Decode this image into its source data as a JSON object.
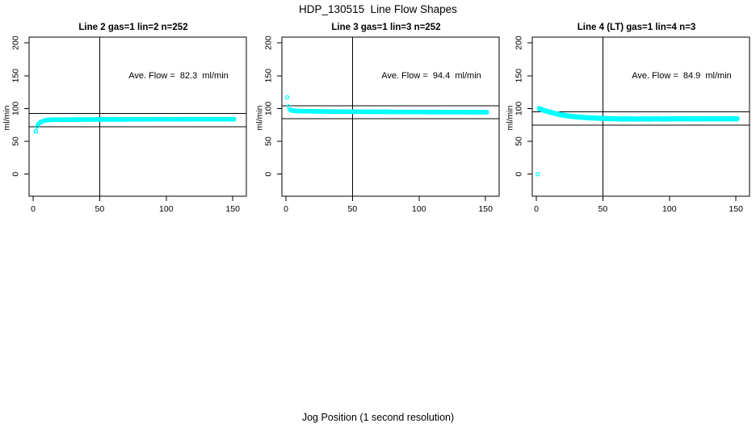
{
  "figure": {
    "title": "HDP_130515  Line Flow Shapes",
    "xlabel": "Jog Position (1 second resolution)",
    "background_color": "#FFFFFF",
    "axis_color": "#000000"
  },
  "chart_data": {
    "type": "scatter",
    "title": "HDP_130515  Line Flow Shapes",
    "xlabel": "Jog Position (1 second resolution)",
    "ylabel": "ml/min",
    "marker": "open-circle",
    "point_color": "#00FFFF",
    "grid": false,
    "legend": "none",
    "x_ticks": [
      0,
      50,
      100,
      150
    ],
    "y_ticks": [
      0,
      50,
      100,
      150,
      200
    ],
    "xlim": [
      -6,
      157
    ],
    "ylim": [
      -34,
      209
    ],
    "vline_x": 50,
    "panels": [
      {
        "title": "Line 2 gas=1 lin=2 n=252",
        "annotation": "Ave. Flow =  82.3  ml/min",
        "ave_flow_ml_min": 82.3,
        "n_points": 252,
        "hlines": [
          92.3,
          72.3
        ],
        "x_start": 2,
        "x_end": 151,
        "x_step": 1,
        "keypoints": [
          [
            2,
            65
          ],
          [
            3,
            72.5
          ],
          [
            4,
            76
          ],
          [
            5,
            78
          ],
          [
            6,
            79.5
          ],
          [
            8,
            81
          ],
          [
            10,
            82
          ],
          [
            15,
            82.8
          ],
          [
            60,
            83.2
          ],
          [
            151,
            83.5
          ]
        ],
        "outliers": [],
        "overlay_offsets": [
          0,
          0.5
        ]
      },
      {
        "title": "Line 3 gas=1 lin=3 n=252",
        "annotation": "Ave. Flow =  94.4  ml/min",
        "ave_flow_ml_min": 94.4,
        "n_points": 252,
        "hlines": [
          104.4,
          84.4
        ],
        "x_start": 3,
        "x_end": 151,
        "x_step": 1,
        "keypoints": [
          [
            3,
            98
          ],
          [
            4,
            97
          ],
          [
            6,
            96.3
          ],
          [
            10,
            95.8
          ],
          [
            30,
            95.2
          ],
          [
            60,
            94.8
          ],
          [
            100,
            94.4
          ],
          [
            151,
            94.1
          ]
        ],
        "outliers": [
          [
            1,
            117
          ],
          [
            2,
            103
          ]
        ],
        "overlay_offsets": [
          0,
          0.5
        ]
      },
      {
        "title": "Line 4 (LT) gas=1 lin=4 n=3",
        "annotation": "Ave. Flow =  84.9  ml/min",
        "ave_flow_ml_min": 84.9,
        "n_points": 3,
        "hlines": [
          94.9,
          74.9
        ],
        "x_start": 2,
        "x_end": 151,
        "x_step": 1,
        "keypoints": [
          [
            2,
            100
          ],
          [
            3,
            99.3
          ],
          [
            4,
            98.5
          ],
          [
            6,
            97
          ],
          [
            8,
            95.8
          ],
          [
            10,
            94.7
          ],
          [
            12,
            93.5
          ],
          [
            14,
            92.5
          ],
          [
            16,
            91.5
          ],
          [
            18,
            90.7
          ],
          [
            20,
            90
          ],
          [
            23,
            89
          ],
          [
            26,
            88.2
          ],
          [
            30,
            87.3
          ],
          [
            35,
            86.5
          ],
          [
            40,
            85.8
          ],
          [
            45,
            85.3
          ],
          [
            50,
            85
          ],
          [
            55,
            84.5
          ],
          [
            60,
            84.4
          ],
          [
            65,
            84
          ],
          [
            70,
            84.3
          ],
          [
            75,
            83.9
          ],
          [
            80,
            84.2
          ],
          [
            85,
            84
          ],
          [
            90,
            84.4
          ],
          [
            95,
            84
          ],
          [
            100,
            84.3
          ],
          [
            110,
            84.4
          ],
          [
            120,
            84.2
          ],
          [
            130,
            84.4
          ],
          [
            140,
            84.3
          ],
          [
            151,
            84.4
          ]
        ],
        "outliers": [
          [
            1,
            0
          ]
        ],
        "overlay_offsets": [
          0,
          0.7,
          -0.7
        ]
      }
    ]
  }
}
